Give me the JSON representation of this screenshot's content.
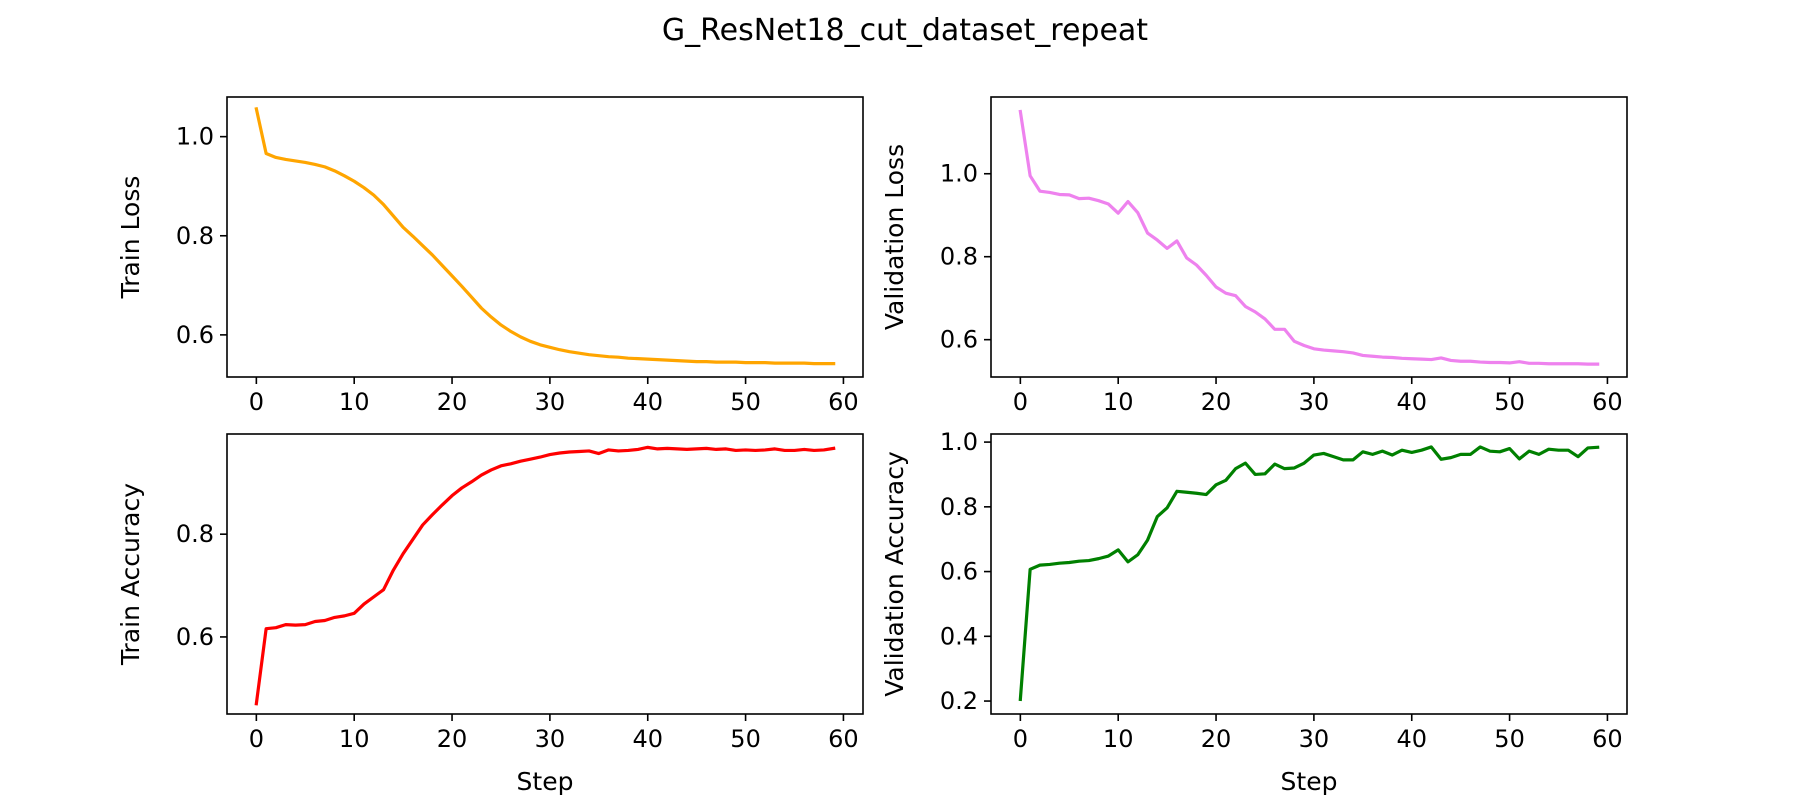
{
  "figure": {
    "title": "G_ResNet18_cut_dataset_repeat"
  },
  "chart_data": [
    {
      "id": "train-loss",
      "type": "line",
      "ylabel": "Train Loss",
      "xlabel": "",
      "color": "#FFA500",
      "xlim": [
        -3,
        62
      ],
      "ylim": [
        0.515,
        1.08
      ],
      "xticks": [
        0,
        10,
        20,
        30,
        40,
        50,
        60
      ],
      "yticks": [
        0.6,
        0.8,
        1.0
      ],
      "ytick_labels": [
        "0.6",
        "0.8",
        "1.0"
      ],
      "x_start": 0,
      "y": [
        1.056,
        0.966,
        0.958,
        0.954,
        0.951,
        0.948,
        0.944,
        0.939,
        0.931,
        0.921,
        0.91,
        0.897,
        0.882,
        0.863,
        0.84,
        0.817,
        0.799,
        0.78,
        0.761,
        0.74,
        0.719,
        0.698,
        0.676,
        0.654,
        0.636,
        0.62,
        0.607,
        0.596,
        0.587,
        0.58,
        0.575,
        0.57,
        0.566,
        0.563,
        0.56,
        0.558,
        0.556,
        0.555,
        0.553,
        0.552,
        0.551,
        0.55,
        0.549,
        0.548,
        0.547,
        0.546,
        0.546,
        0.545,
        0.545,
        0.545,
        0.544,
        0.544,
        0.544,
        0.543,
        0.543,
        0.543,
        0.543,
        0.542,
        0.542,
        0.542
      ]
    },
    {
      "id": "validation-loss",
      "type": "line",
      "ylabel": "Validation Loss",
      "xlabel": "",
      "color": "#EE82EE",
      "xlim": [
        -3,
        62
      ],
      "ylim": [
        0.51,
        1.185
      ],
      "xticks": [
        0,
        10,
        20,
        30,
        40,
        50,
        60
      ],
      "yticks": [
        0.6,
        0.8,
        1.0
      ],
      "ytick_labels": [
        "0.6",
        "0.8",
        "1.0"
      ],
      "x_start": 0,
      "y": [
        1.15,
        0.995,
        0.958,
        0.955,
        0.95,
        0.949,
        0.94,
        0.941,
        0.935,
        0.927,
        0.905,
        0.933,
        0.906,
        0.857,
        0.84,
        0.82,
        0.838,
        0.797,
        0.78,
        0.755,
        0.727,
        0.712,
        0.706,
        0.68,
        0.667,
        0.65,
        0.625,
        0.625,
        0.596,
        0.586,
        0.578,
        0.575,
        0.573,
        0.571,
        0.568,
        0.562,
        0.56,
        0.558,
        0.557,
        0.555,
        0.554,
        0.553,
        0.552,
        0.556,
        0.55,
        0.548,
        0.548,
        0.546,
        0.545,
        0.545,
        0.544,
        0.547,
        0.543,
        0.543,
        0.542,
        0.542,
        0.542,
        0.542,
        0.541,
        0.541
      ]
    },
    {
      "id": "train-accuracy",
      "type": "line",
      "ylabel": "Train Accuracy",
      "xlabel": "Step",
      "color": "#FF0000",
      "xlim": [
        -3,
        62
      ],
      "ylim": [
        0.45,
        0.995
      ],
      "xticks": [
        0,
        10,
        20,
        30,
        40,
        50,
        60
      ],
      "yticks": [
        0.6,
        0.8
      ],
      "ytick_labels": [
        "0.6",
        "0.8"
      ],
      "x_start": 0,
      "y": [
        0.47,
        0.616,
        0.618,
        0.624,
        0.623,
        0.624,
        0.63,
        0.632,
        0.638,
        0.641,
        0.646,
        0.664,
        0.678,
        0.692,
        0.73,
        0.762,
        0.79,
        0.818,
        0.838,
        0.857,
        0.875,
        0.89,
        0.902,
        0.915,
        0.925,
        0.933,
        0.937,
        0.942,
        0.946,
        0.95,
        0.955,
        0.958,
        0.96,
        0.961,
        0.962,
        0.957,
        0.964,
        0.962,
        0.963,
        0.965,
        0.969,
        0.966,
        0.967,
        0.966,
        0.965,
        0.966,
        0.967,
        0.965,
        0.966,
        0.963,
        0.964,
        0.963,
        0.964,
        0.966,
        0.963,
        0.963,
        0.965,
        0.963,
        0.964,
        0.967
      ]
    },
    {
      "id": "validation-accuracy",
      "type": "line",
      "ylabel": "Validation Accuracy",
      "xlabel": "Step",
      "color": "#008000",
      "xlim": [
        -3,
        62
      ],
      "ylim": [
        0.16,
        1.025
      ],
      "xticks": [
        0,
        10,
        20,
        30,
        40,
        50,
        60
      ],
      "yticks": [
        0.2,
        0.4,
        0.6,
        0.8,
        1.0
      ],
      "ytick_labels": [
        "0.2",
        "0.4",
        "0.6",
        "0.8",
        "1.0"
      ],
      "x_start": 0,
      "y": [
        0.205,
        0.607,
        0.62,
        0.622,
        0.626,
        0.628,
        0.632,
        0.634,
        0.64,
        0.648,
        0.667,
        0.63,
        0.652,
        0.697,
        0.77,
        0.797,
        0.848,
        0.845,
        0.842,
        0.838,
        0.868,
        0.882,
        0.918,
        0.935,
        0.9,
        0.902,
        0.932,
        0.918,
        0.92,
        0.935,
        0.96,
        0.965,
        0.955,
        0.945,
        0.945,
        0.97,
        0.962,
        0.972,
        0.96,
        0.975,
        0.968,
        0.975,
        0.985,
        0.947,
        0.952,
        0.962,
        0.962,
        0.985,
        0.972,
        0.97,
        0.98,
        0.948,
        0.972,
        0.962,
        0.978,
        0.975,
        0.975,
        0.955,
        0.982,
        0.984
      ]
    }
  ]
}
